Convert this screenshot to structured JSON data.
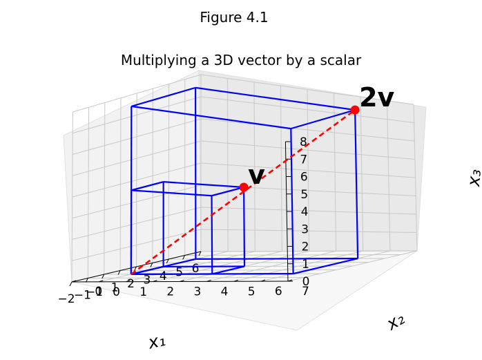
{
  "suptitle": "Figure 4.1",
  "chart_data": {
    "type": "3d-wireframe",
    "title": "Multiplying a 3D vector by a scalar",
    "xlabel": "x₁",
    "ylabel": "x₂",
    "zlabel": "x₃",
    "xlim": [
      -2,
      6
    ],
    "ylim": [
      -1,
      7
    ],
    "zlim": [
      0,
      8
    ],
    "xticks": [
      "−2",
      "−1",
      "0",
      "1",
      "2",
      "3",
      "4",
      "5",
      "6"
    ],
    "yticks": [
      "−1",
      "0",
      "1",
      "2",
      "3",
      "4",
      "5",
      "6",
      "7"
    ],
    "zticks": [
      "0",
      "1",
      "2",
      "3",
      "4",
      "5",
      "6",
      "7",
      "8"
    ],
    "grid": true,
    "boxes": [
      {
        "name": "v box",
        "from": [
          0,
          0,
          0
        ],
        "to": [
          2,
          3,
          4
        ],
        "color": "#0000ff"
      },
      {
        "name": "2v box",
        "from": [
          0,
          0,
          0
        ],
        "to": [
          4,
          6,
          8
        ],
        "color": "#0000ff"
      }
    ],
    "line": {
      "from": [
        0,
        0,
        0
      ],
      "to": [
        4,
        6,
        8
      ],
      "color": "#ff0000",
      "style": "dashed"
    },
    "points": [
      {
        "label": "v",
        "x": 2,
        "y": 3,
        "z": 4,
        "color": "#ff0000"
      },
      {
        "label": "2v",
        "x": 4,
        "y": 6,
        "z": 8,
        "color": "#ff0000"
      }
    ]
  }
}
